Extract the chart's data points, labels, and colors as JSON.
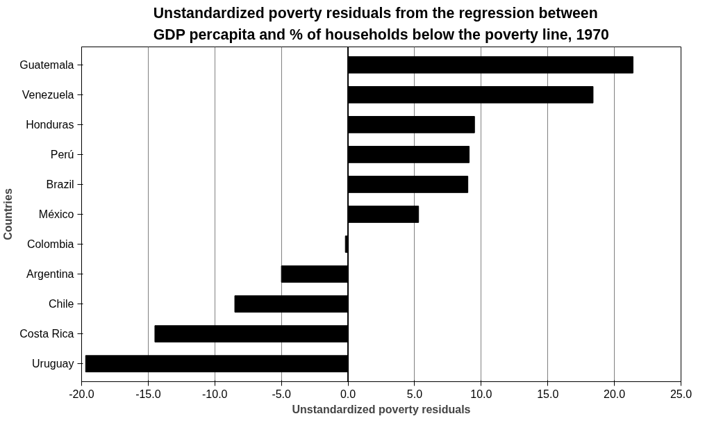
{
  "chart_data": {
    "type": "bar",
    "orientation": "horizontal",
    "title": "Unstandardized poverty residuals from the regression between\nGDP percapita and % of households below the poverty line, 1970",
    "xlabel": "Unstandardized poverty residuals",
    "ylabel": "Countries",
    "categories": [
      "Guatemala",
      "Venezuela",
      "Honduras",
      "Perú",
      "Brazil",
      "México",
      "Colombia",
      "Argentina",
      "Chile",
      "Costa Rica",
      "Uruguay"
    ],
    "values": [
      21.4,
      18.4,
      9.5,
      9.1,
      9.0,
      5.3,
      -0.2,
      -5.0,
      -8.5,
      -14.5,
      -19.7
    ],
    "color": "#000000",
    "xlim": [
      -20,
      25
    ],
    "xticks": [
      {
        "value": -20,
        "label": "-20.0"
      },
      {
        "value": -15,
        "label": "-15.0"
      },
      {
        "value": -10,
        "label": "-10.0"
      },
      {
        "value": -5,
        "label": "-5.0"
      },
      {
        "value": 0,
        "label": "0.0"
      },
      {
        "value": 5,
        "label": "5.0"
      },
      {
        "value": 10,
        "label": "10.0"
      },
      {
        "value": 15,
        "label": "15.0"
      },
      {
        "value": 20,
        "label": "20.0"
      },
      {
        "value": 25,
        "label": "25.0"
      }
    ],
    "grid": "x"
  }
}
